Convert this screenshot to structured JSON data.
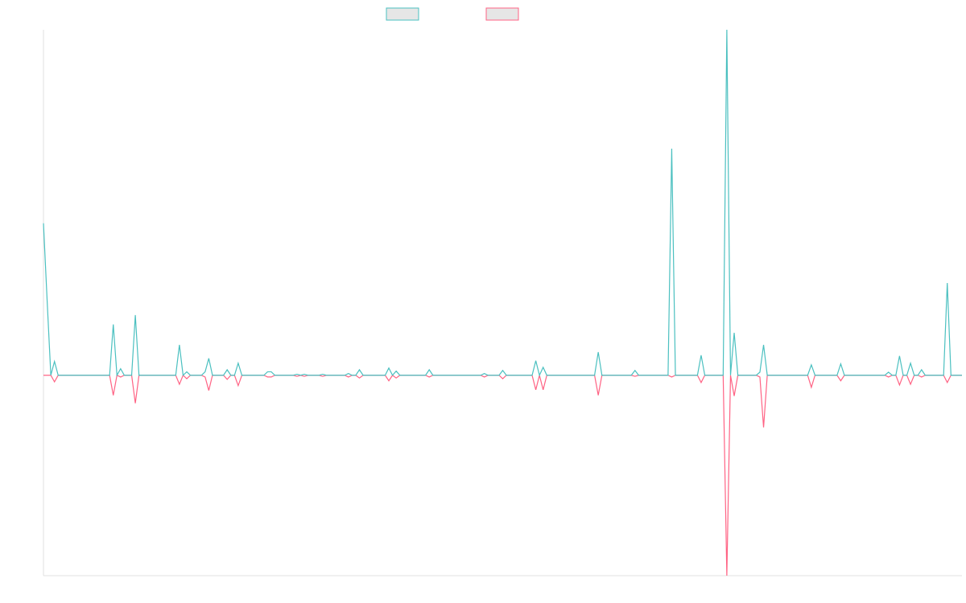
{
  "chart_data": {
    "type": "line",
    "x": [
      0,
      1,
      2,
      3,
      4,
      18,
      19,
      20,
      21,
      22,
      24,
      25,
      26,
      36,
      37,
      38,
      39,
      40,
      43,
      44,
      45,
      46,
      49,
      50,
      51,
      52,
      53,
      54,
      60,
      61,
      62,
      63,
      68,
      69,
      70,
      71,
      72,
      75,
      76,
      77,
      82,
      83,
      84,
      85,
      86,
      87,
      93,
      94,
      95,
      96,
      97,
      104,
      105,
      106,
      119,
      120,
      121,
      124,
      125,
      126,
      133,
      134,
      135,
      136,
      137,
      150,
      151,
      152,
      160,
      161,
      162,
      170,
      171,
      172,
      178,
      179,
      180,
      185,
      186,
      187,
      188,
      189,
      194,
      195,
      196,
      197,
      208,
      209,
      210,
      216,
      217,
      218,
      229,
      230,
      231,
      232,
      233,
      234,
      235,
      236,
      237,
      238,
      239,
      240,
      245,
      246,
      247,
      250
    ],
    "series": [
      {
        "color": "#4bc0c0",
        "values": [
          44,
          21.6,
          0,
          4,
          0,
          0,
          14.7,
          0,
          1.9,
          0,
          0,
          17.4,
          0,
          0,
          8.8,
          0,
          1,
          0,
          0,
          1,
          4.9,
          0,
          0,
          1.6,
          0,
          0,
          3.5,
          0,
          0,
          1,
          1,
          0,
          0,
          0.3,
          0,
          0.3,
          0,
          0,
          0.3,
          0,
          0,
          0.5,
          0,
          0,
          1.6,
          0,
          0,
          2.1,
          0,
          1.2,
          0,
          0,
          1.6,
          0,
          0,
          0.5,
          0,
          0,
          1.4,
          0,
          0,
          4.2,
          0,
          2.3,
          0,
          0,
          6.7,
          0,
          0,
          1.4,
          0,
          0,
          65.6,
          0,
          0,
          5.8,
          0,
          0,
          100,
          0,
          12.3,
          0,
          0,
          0.9,
          8.8,
          0,
          0,
          3,
          0,
          0,
          3.3,
          0,
          0,
          0.9,
          0,
          0,
          5.6,
          0,
          0,
          3.5,
          0,
          0,
          1.6,
          0,
          0,
          26.7,
          0,
          0
        ]
      },
      {
        "color": "#ff6384",
        "values": [
          0,
          0,
          0,
          -1.9,
          0,
          0,
          -5.8,
          0,
          -0.5,
          0,
          0,
          -8.1,
          0,
          0,
          -2.6,
          0,
          -1,
          0,
          0,
          -0.5,
          -4.4,
          0,
          0,
          -1.2,
          0,
          0,
          -3,
          0,
          0,
          -0.5,
          -0.5,
          0,
          0,
          -0.3,
          0,
          -0.3,
          0,
          0,
          -0.3,
          0,
          0,
          -0.5,
          0,
          0,
          -0.8,
          0,
          0,
          -1.6,
          0,
          -0.8,
          0,
          0,
          -0.5,
          0,
          0,
          -0.5,
          0,
          0,
          -1,
          0,
          0,
          -4.2,
          0,
          -4.2,
          0,
          0,
          -5.8,
          0,
          0,
          -0.3,
          0,
          0,
          -0.5,
          0,
          0,
          -2.1,
          0,
          0,
          -58,
          0,
          -6,
          0,
          0,
          -0.5,
          -15.1,
          0,
          0,
          -3.5,
          0,
          0,
          -1.6,
          0,
          0,
          -0.5,
          0,
          0,
          -2.8,
          0,
          0,
          -2.6,
          0,
          0,
          -0.5,
          0,
          0,
          -2.1,
          0,
          0
        ]
      }
    ],
    "xlim": [
      0,
      250
    ],
    "ylim": [
      -58,
      100
    ]
  }
}
